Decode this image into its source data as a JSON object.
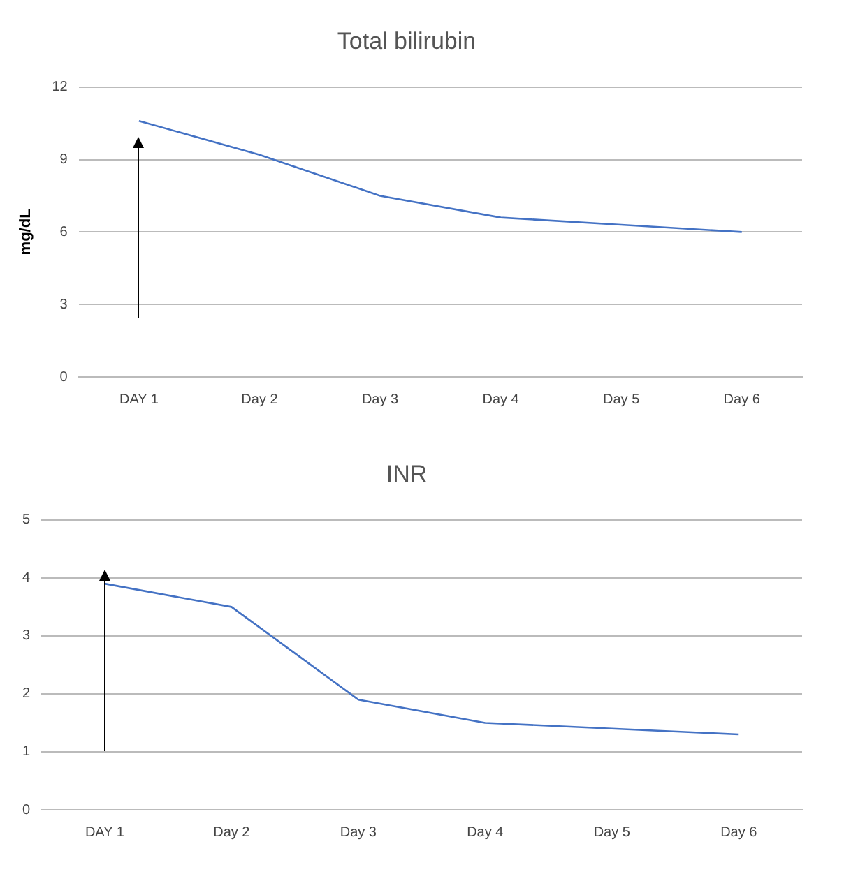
{
  "chart_data": [
    {
      "type": "line",
      "title": "Total bilirubin",
      "ylabel": "mg/dL",
      "categories": [
        "DAY 1",
        "Day 2",
        "Day 3",
        "Day 4",
        "Day 5",
        "Day 6"
      ],
      "series": [
        {
          "color": "#4472c4",
          "values": [
            10.6,
            9.2,
            7.5,
            6.6,
            6.3,
            6.0
          ]
        }
      ],
      "ylim": [
        0,
        12
      ],
      "yticks": [
        0,
        3,
        6,
        9,
        12
      ],
      "grid": "y",
      "legend": false,
      "marker": "none",
      "line_style": "solid"
    },
    {
      "type": "line",
      "title": "INR",
      "categories": [
        "DAY 1",
        "Day 2",
        "Day 3",
        "Day 4",
        "Day 5",
        "Day 6"
      ],
      "series": [
        {
          "color": "#4472c4",
          "values": [
            3.9,
            3.5,
            1.9,
            1.5,
            1.4,
            1.3
          ]
        }
      ],
      "ylim": [
        0,
        5
      ],
      "yticks": [
        0,
        1,
        2,
        3,
        4,
        5
      ],
      "grid": "y",
      "legend": false,
      "marker": "none",
      "line_style": "solid"
    }
  ]
}
